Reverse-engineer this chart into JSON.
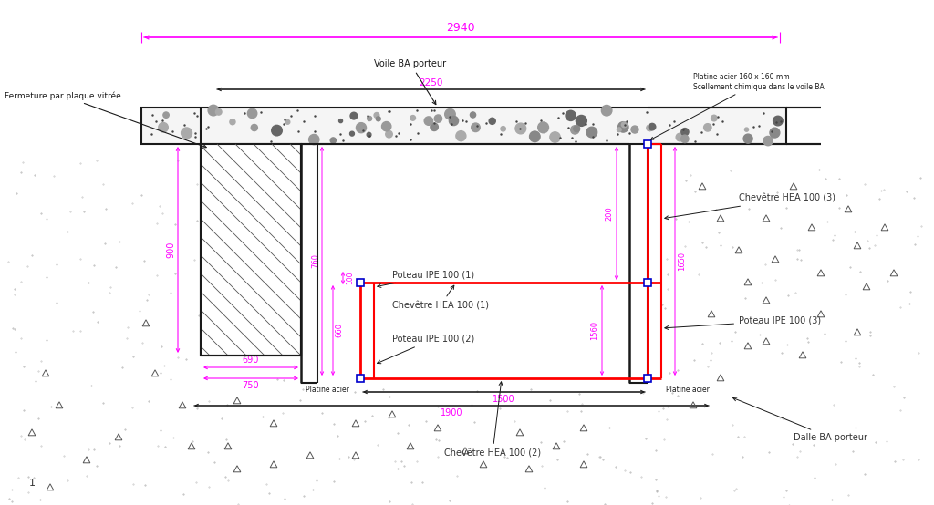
{
  "bg_color": "#ffffff",
  "black": "#1a1a1a",
  "red": "#ff0000",
  "blue": "#0000cc",
  "magenta": "#ff00ff",
  "dark_gray": "#333333",
  "fig_width": 10.24,
  "fig_height": 5.54,
  "dpi": 100,
  "annotations": {
    "label_2940": "2940",
    "label_2250": "2250",
    "label_900": "900",
    "label_690": "690",
    "label_750": "750",
    "label_760": "760",
    "label_660": "660",
    "label_100": "100",
    "label_200": "200",
    "label_1560": "1560",
    "label_1650": "1650",
    "label_1500": "1500",
    "label_1900": "1900",
    "voile_ba": "Voile BA porteur",
    "fermeture": "Fermeture par plaque vitrée",
    "platine1": "Platine acier 160 x 160 mm\nScellement chimique dans le voile BA",
    "platine_acier_l": "Platine acier",
    "platine_acier_r": "Platine acier",
    "poteau1": "Poteau IPE 100 (1)",
    "chevetr1": "Chevêtre HEA 100 (1)",
    "poteau2": "Poteau IPE 100 (2)",
    "chevetr2": "Chevêtre HEA 100 (2)",
    "chevetr3": "Chevêtre HEA 100 (3)",
    "poteau3": "Poteau IPE 100 (3)",
    "dalle_ba": "Dalle BA porteur"
  }
}
